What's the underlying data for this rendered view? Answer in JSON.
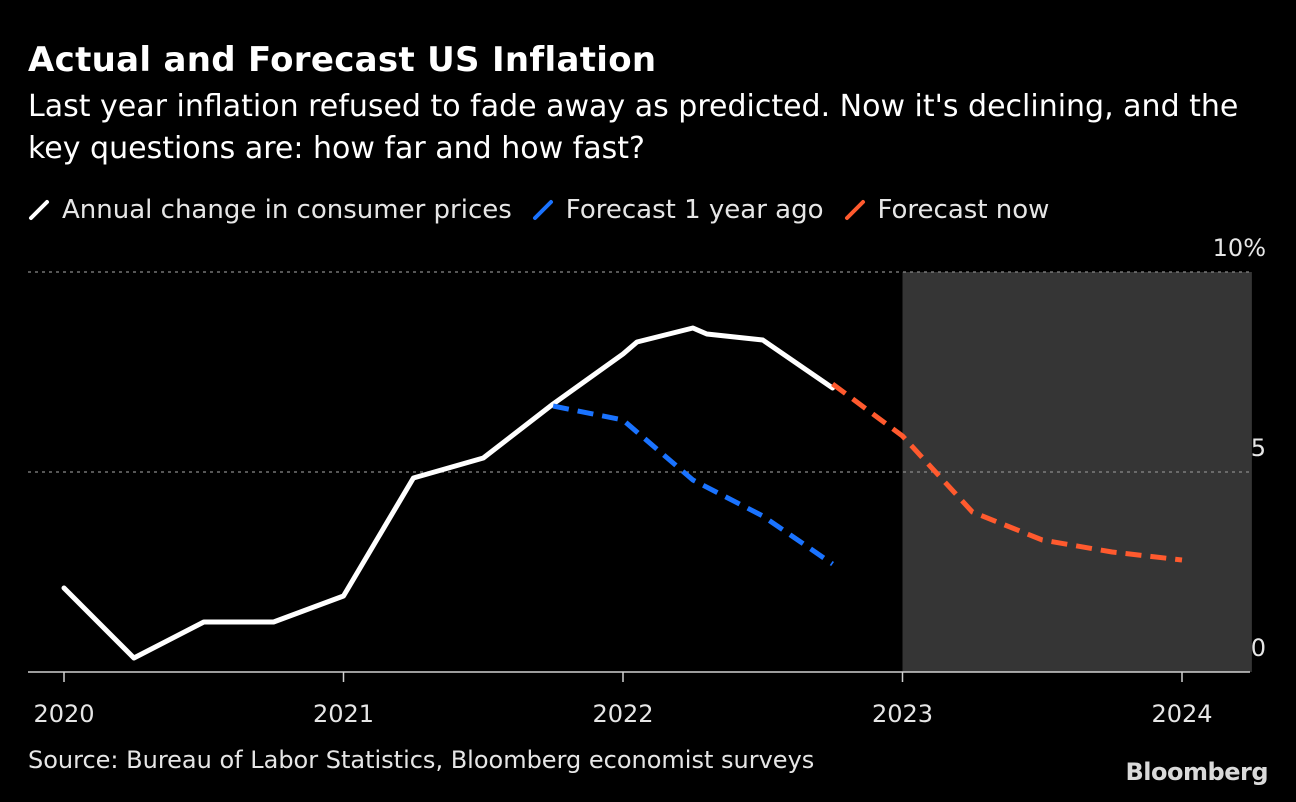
{
  "header": {
    "title": "Actual and Forecast US Inflation",
    "subtitle": "Last year inflation refused to fade away as predicted. Now it's declining, and the key questions are: how far and how fast?"
  },
  "legend": [
    {
      "label": "Annual change in consumer prices",
      "color": "#ffffff",
      "icon": "slash-line-white"
    },
    {
      "label": "Forecast 1 year ago",
      "color": "#1a73ff",
      "icon": "slash-line-blue"
    },
    {
      "label": "Forecast now",
      "color": "#ff5a2e",
      "icon": "slash-line-orange"
    }
  ],
  "footer": {
    "source": "Source: Bureau of Labor Statistics, Bloomberg economist surveys",
    "logo": "Bloomberg"
  },
  "chart_data": {
    "type": "line",
    "title": "Actual and Forecast US Inflation",
    "xlabel": "",
    "ylabel": "",
    "x_ticks": [
      "2020",
      "2021",
      "2022",
      "2023",
      "2024"
    ],
    "y_ticks": [
      "0",
      "5",
      "10%"
    ],
    "ylim": [
      0,
      10
    ],
    "xlim": [
      2019.88,
      2024.5
    ],
    "grid": {
      "horizontal": true,
      "style": "dotted"
    },
    "shaded_region": {
      "x_start": 2023.0,
      "x_end": 2024.25,
      "color": "#353535"
    },
    "legend_position": "top-left",
    "series": [
      {
        "name": "Annual change in consumer prices",
        "color": "#ffffff",
        "style": "solid",
        "points": [
          [
            2020.0,
            2.1
          ],
          [
            2020.25,
            0.35
          ],
          [
            2020.5,
            1.25
          ],
          [
            2020.75,
            1.25
          ],
          [
            2021.0,
            1.9
          ],
          [
            2021.25,
            4.85
          ],
          [
            2021.5,
            5.35
          ],
          [
            2021.75,
            6.7
          ],
          [
            2022.0,
            7.95
          ],
          [
            2022.05,
            8.25
          ],
          [
            2022.25,
            8.6
          ],
          [
            2022.3,
            8.45
          ],
          [
            2022.5,
            8.3
          ],
          [
            2022.75,
            7.1
          ]
        ]
      },
      {
        "name": "Forecast 1 year ago",
        "color": "#1a73ff",
        "style": "dashed",
        "points": [
          [
            2021.75,
            6.65
          ],
          [
            2022.0,
            6.3
          ],
          [
            2022.25,
            4.8
          ],
          [
            2022.5,
            3.9
          ],
          [
            2022.75,
            2.7
          ]
        ]
      },
      {
        "name": "Forecast now",
        "color": "#ff5a2e",
        "style": "dashed",
        "points": [
          [
            2022.75,
            7.2
          ],
          [
            2023.0,
            5.9
          ],
          [
            2023.25,
            4.0
          ],
          [
            2023.5,
            3.3
          ],
          [
            2023.75,
            3.0
          ],
          [
            2024.0,
            2.8
          ]
        ]
      }
    ]
  }
}
